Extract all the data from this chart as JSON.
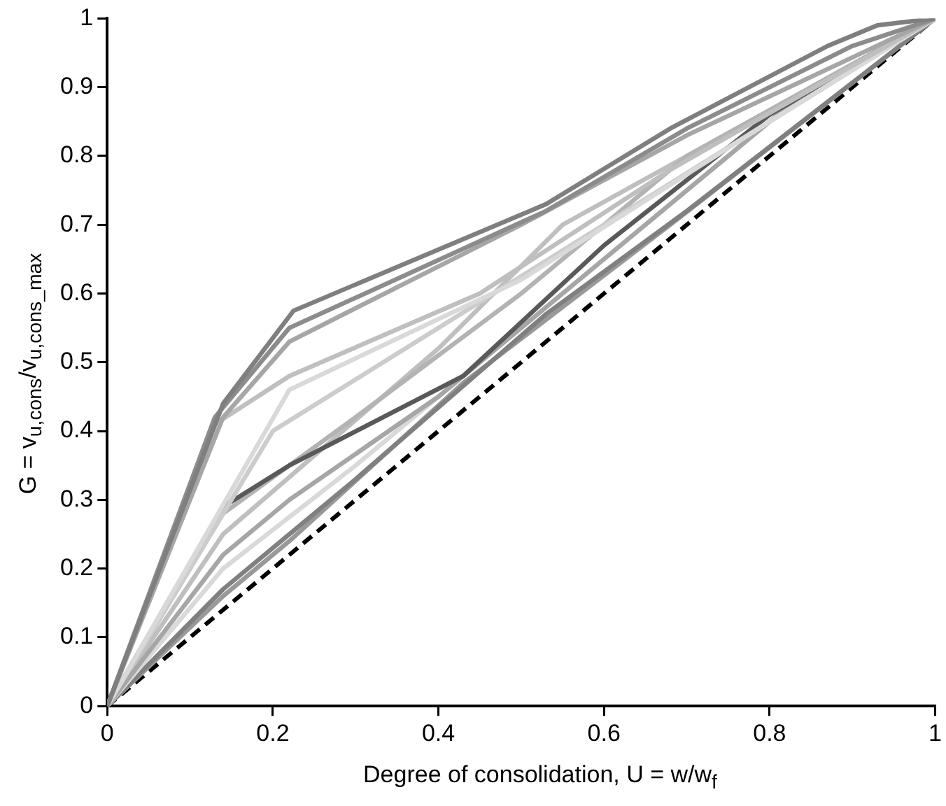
{
  "chart_data": {
    "type": "line",
    "xlabel": "Degree of consolidation,  U = w/w$_{f}$",
    "ylabel": "G = v$_{u,cons}$/v$_{u,cons_max}$",
    "xlim": [
      0,
      1
    ],
    "xticks": [
      0,
      0.2,
      0.4,
      0.6,
      0.8,
      1
    ],
    "ylim": [
      0,
      1
    ],
    "yticks": [
      0,
      0.1,
      0.2,
      0.3,
      0.4,
      0.5,
      0.6,
      0.7,
      0.8,
      0.9,
      1
    ],
    "grid": false,
    "legend": false,
    "marker": "none",
    "series": [
      {
        "color": "#7f7f7f",
        "x": [
          0,
          0.14,
          0.225,
          0.53,
          0.68,
          0.87,
          0.93,
          1
        ],
        "values": [
          0,
          0.44,
          0.575,
          0.73,
          0.84,
          0.96,
          0.99,
          1
        ]
      },
      {
        "color": "#8c8c8c",
        "x": [
          0,
          0.13,
          0.22,
          0.53,
          0.7,
          0.9,
          1
        ],
        "values": [
          0,
          0.42,
          0.55,
          0.72,
          0.84,
          0.96,
          1
        ]
      },
      {
        "color": "#a6a6a6",
        "x": [
          0,
          0.14,
          0.22,
          0.5,
          0.7,
          1
        ],
        "values": [
          0,
          0.42,
          0.53,
          0.7,
          0.83,
          1
        ]
      },
      {
        "color": "#bfbfbf",
        "x": [
          0,
          0.13,
          0.22,
          0.45,
          0.68,
          1
        ],
        "values": [
          0,
          0.41,
          0.48,
          0.6,
          0.78,
          1
        ]
      },
      {
        "color": "#d9d9d9",
        "x": [
          0,
          0.22,
          0.5,
          0.8,
          1
        ],
        "values": [
          0,
          0.46,
          0.62,
          0.85,
          1
        ]
      },
      {
        "color": "#cccccc",
        "x": [
          0,
          0.2,
          0.4,
          0.6,
          1
        ],
        "values": [
          0,
          0.4,
          0.55,
          0.7,
          1
        ]
      },
      {
        "color": "#595959",
        "x": [
          0,
          0.14,
          0.22,
          0.43,
          0.6,
          0.8,
          1
        ],
        "values": [
          0,
          0.29,
          0.35,
          0.48,
          0.67,
          0.86,
          1
        ]
      },
      {
        "color": "#b3b3b3",
        "x": [
          0,
          0.14,
          0.3,
          0.5,
          0.7,
          1
        ],
        "values": [
          0,
          0.28,
          0.42,
          0.6,
          0.8,
          1
        ]
      },
      {
        "color": "#a6a6a6",
        "x": [
          0,
          0.14,
          0.22,
          0.4,
          0.6,
          0.85,
          1
        ],
        "values": [
          0,
          0.22,
          0.3,
          0.45,
          0.65,
          0.9,
          1
        ]
      },
      {
        "color": "#d9d9d9",
        "x": [
          0,
          0.14,
          0.3,
          0.5,
          0.8,
          1
        ],
        "values": [
          0,
          0.2,
          0.35,
          0.55,
          0.85,
          1
        ]
      },
      {
        "color": "#808080",
        "x": [
          0,
          0.14,
          0.3,
          0.53,
          0.7,
          1
        ],
        "values": [
          0,
          0.17,
          0.33,
          0.57,
          0.72,
          1
        ]
      },
      {
        "color": "#999999",
        "x": [
          0,
          0.14,
          0.22,
          0.43,
          0.68,
          1
        ],
        "values": [
          0,
          0.16,
          0.24,
          0.47,
          0.7,
          1
        ]
      },
      {
        "color": "#bfbfbf",
        "x": [
          0,
          0.14,
          0.4,
          0.55,
          0.7,
          1
        ],
        "values": [
          0,
          0.25,
          0.52,
          0.7,
          0.8,
          1
        ]
      },
      {
        "color": "#000000",
        "line_style": "dashed",
        "x": [
          0,
          1
        ],
        "values": [
          0,
          1
        ]
      }
    ]
  }
}
